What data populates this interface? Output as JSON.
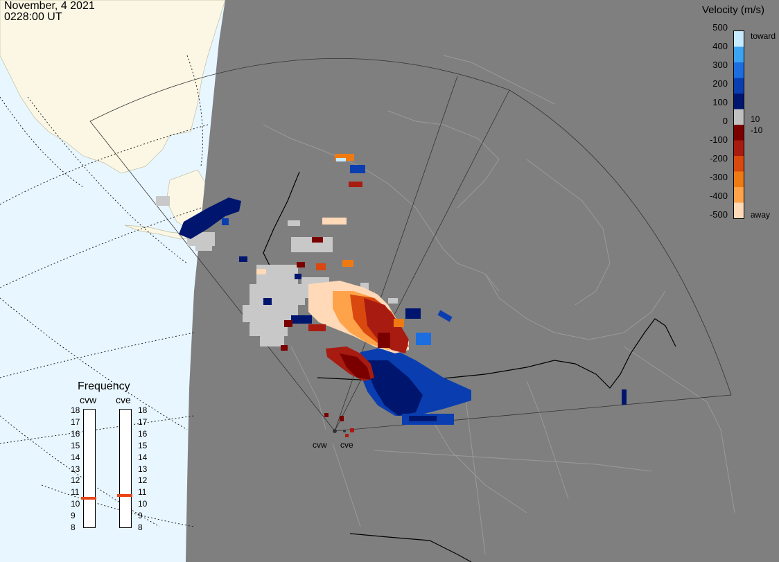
{
  "header": {
    "date": "November, 4 2021",
    "time": "0228:00 UT"
  },
  "legend": {
    "title": "Velocity (m/s)",
    "ticks": [
      "500",
      "400",
      "300",
      "200",
      "100",
      "0",
      "-100",
      "-200",
      "-300",
      "-400",
      "-500"
    ],
    "positive_small": "10",
    "negative_small": "-10",
    "toward_label": "toward",
    "away_label": "away",
    "colors": [
      "#ffd9b8",
      "#ffa34a",
      "#f07a12",
      "#d9480f",
      "#a81b10",
      "#7a0000",
      "#c0c0c0",
      "#00166e",
      "#0a3eb0",
      "#1c6de0",
      "#3aa4f2",
      "#c6eaff"
    ]
  },
  "frequency": {
    "title": "Frequency",
    "radars": [
      {
        "name": "cvw",
        "frequency_mhz": 10.5
      },
      {
        "name": "cve",
        "frequency_mhz": 10.75
      }
    ],
    "scale": [
      "18",
      "17",
      "16",
      "15",
      "14",
      "13",
      "12",
      "11",
      "10",
      "9",
      "8"
    ],
    "marker_color": "#e8451a"
  },
  "stations": [
    {
      "name": "cvw"
    },
    {
      "name": "cve"
    }
  ],
  "map_colors": {
    "ocean": "#e8f6ff",
    "land_outside": "#fbf7e4",
    "night_shade": "#7f7f7f",
    "ground_scatter": "#c8c8c8",
    "coastline": "#9a9a9a",
    "border": "#000000"
  }
}
